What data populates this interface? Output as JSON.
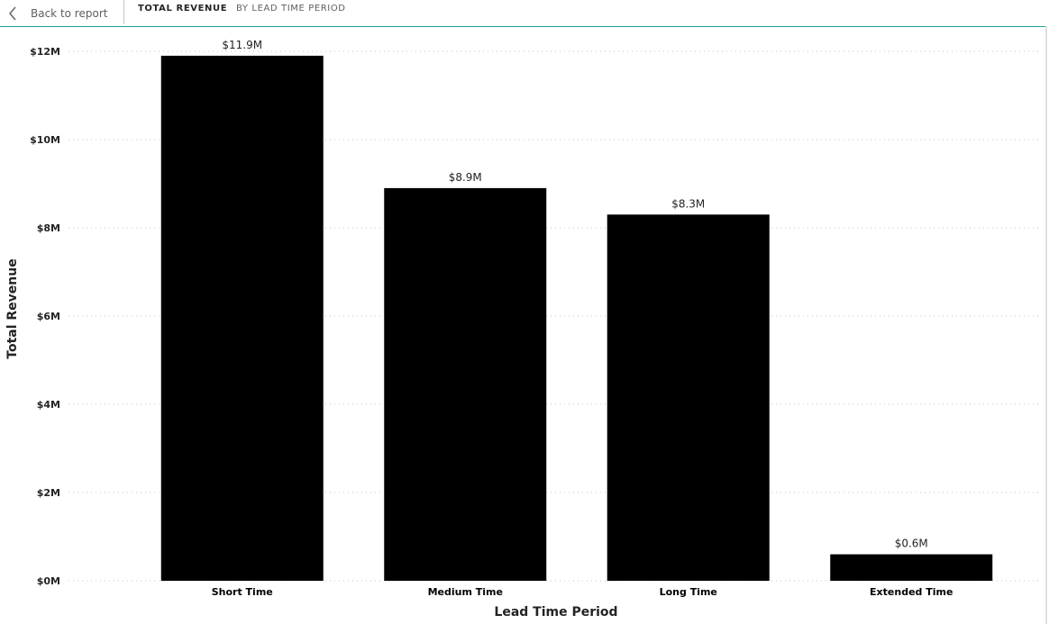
{
  "header": {
    "back_label": "Back to report",
    "title": "TOTAL REVENUE",
    "subtitle": "BY LEAD TIME PERIOD"
  },
  "colors": {
    "bar": "#000000",
    "accent": "#1aa39b",
    "grid": "#c8c6c4"
  },
  "chart_data": {
    "type": "bar",
    "categories": [
      "Short Time",
      "Medium Time",
      "Long Time",
      "Extended Time"
    ],
    "values": [
      11.9,
      8.9,
      8.3,
      0.6
    ],
    "value_labels": [
      "$11.9M",
      "$8.9M",
      "$8.3M",
      "$0.6M"
    ],
    "value_unit": "$M",
    "xlabel": "Lead Time Period",
    "ylabel": "Total Revenue",
    "ylim": [
      0,
      12
    ],
    "yticks": [
      0,
      2,
      4,
      6,
      8,
      10,
      12
    ],
    "ytick_labels": [
      "$0M",
      "$2M",
      "$4M",
      "$6M",
      "$8M",
      "$10M",
      "$12M"
    ],
    "grid": "horizontal dotted",
    "legend": "none"
  }
}
